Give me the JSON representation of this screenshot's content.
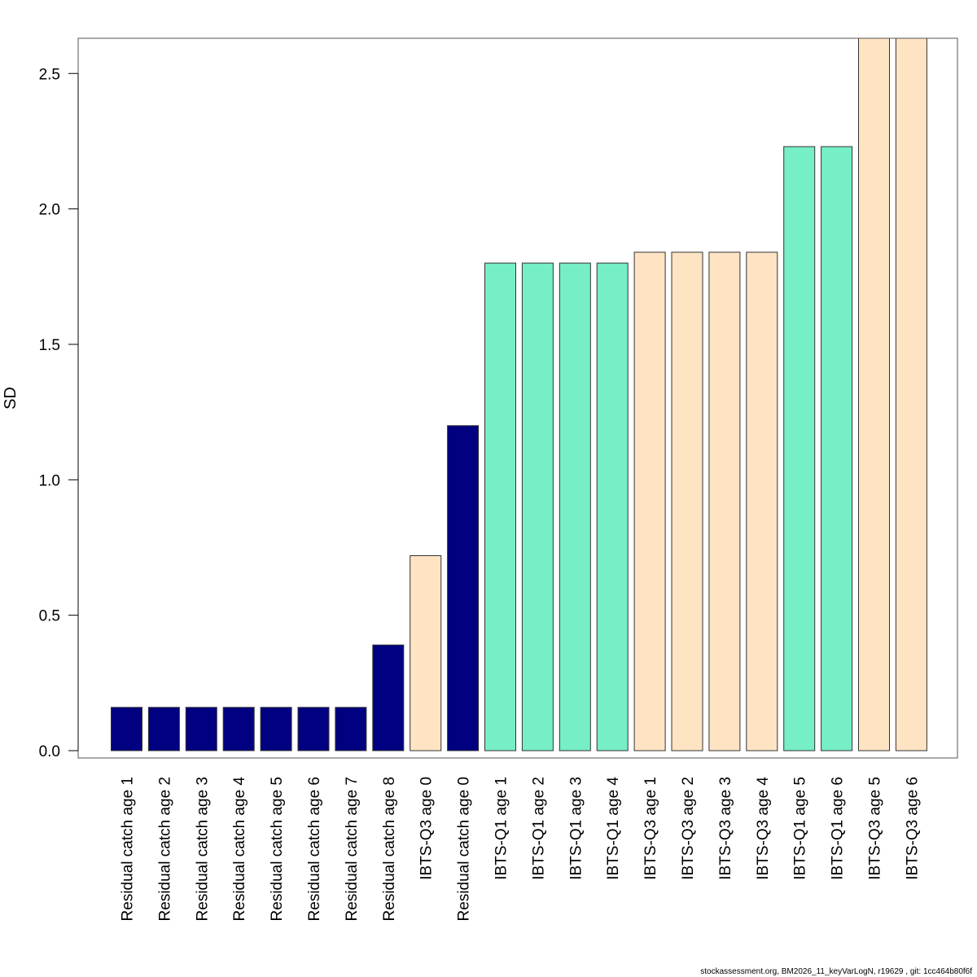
{
  "chart_data": {
    "type": "bar",
    "ylabel": "SD",
    "xlabel": "",
    "ylim": [
      0,
      2.63
    ],
    "yticks": [
      0.0,
      0.5,
      1.0,
      1.5,
      2.0,
      2.5
    ],
    "ytick_labels": [
      "0.0",
      "0.5",
      "1.0",
      "1.5",
      "2.0",
      "2.5"
    ],
    "grid": false,
    "categories": [
      "Residual catch age 1",
      "Residual catch age 2",
      "Residual catch age 3",
      "Residual catch age 4",
      "Residual catch age 5",
      "Residual catch age 6",
      "Residual catch age 7",
      "Residual catch age 8",
      "IBTS-Q3 age 0",
      "Residual catch age 0",
      "IBTS-Q1 age 1",
      "IBTS-Q1 age 2",
      "IBTS-Q1 age 3",
      "IBTS-Q1 age 4",
      "IBTS-Q3 age 1",
      "IBTS-Q3 age 2",
      "IBTS-Q3 age 3",
      "IBTS-Q3 age 4",
      "IBTS-Q1 age 5",
      "IBTS-Q1 age 6",
      "IBTS-Q3 age 5",
      "IBTS-Q3 age 6"
    ],
    "values": [
      0.16,
      0.16,
      0.16,
      0.16,
      0.16,
      0.16,
      0.16,
      0.39,
      0.72,
      1.2,
      1.8,
      1.8,
      1.8,
      1.8,
      1.84,
      1.84,
      1.84,
      1.84,
      2.23,
      2.23,
      2.63,
      2.63
    ],
    "colors": [
      "#000080",
      "#000080",
      "#000080",
      "#000080",
      "#000080",
      "#000080",
      "#000080",
      "#000080",
      "#FFE4C4",
      "#000080",
      "#76EEC6",
      "#76EEC6",
      "#76EEC6",
      "#76EEC6",
      "#FFE4C4",
      "#FFE4C4",
      "#FFE4C4",
      "#FFE4C4",
      "#76EEC6",
      "#76EEC6",
      "#FFE4C4",
      "#FFE4C4"
    ]
  },
  "footer": {
    "text": "stockassessment.org, BM2026_11_keyVarLogN, r19629 , git: 1cc464b80f6f"
  }
}
